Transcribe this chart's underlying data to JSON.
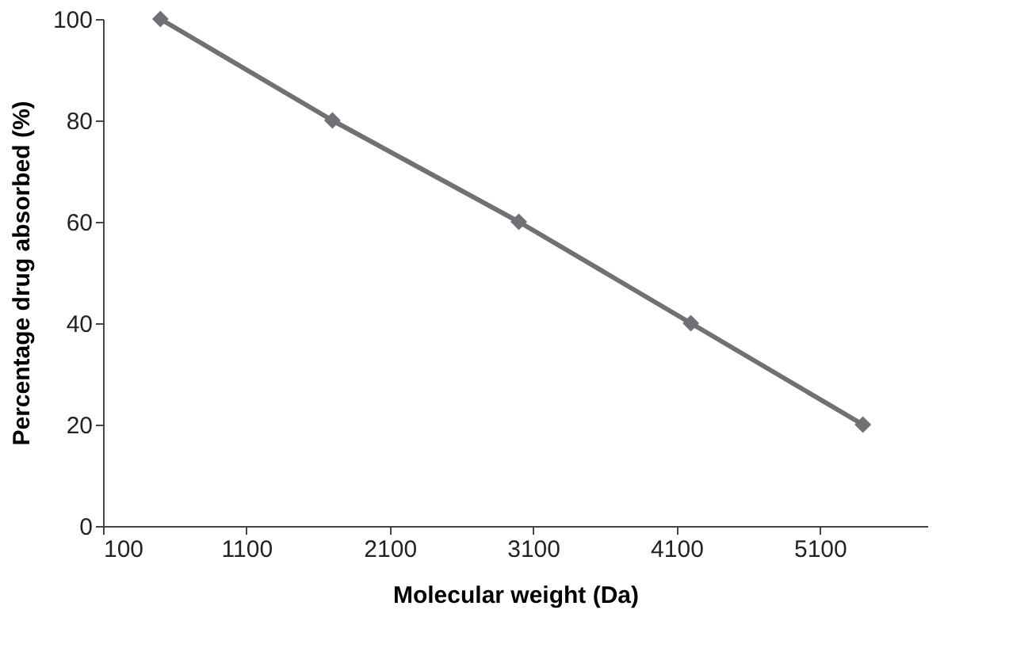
{
  "chart_data": {
    "type": "line",
    "xlabel": "Molecular weight (Da)",
    "ylabel": "Percentage drug absorbed (%)",
    "x": [
      500,
      1700,
      3000,
      4200,
      5400
    ],
    "series": [
      {
        "color": "#707174",
        "values": [
          100,
          80,
          60,
          40,
          20
        ]
      }
    ],
    "xlim": [
      100,
      5850
    ],
    "xticks": [
      100,
      1100,
      2100,
      3100,
      4100,
      5100
    ],
    "ylim": [
      0,
      100
    ],
    "yticks": [
      0,
      20,
      40,
      60,
      80,
      100
    ],
    "grid": false,
    "marker": "diamond",
    "line_style": "solid"
  }
}
